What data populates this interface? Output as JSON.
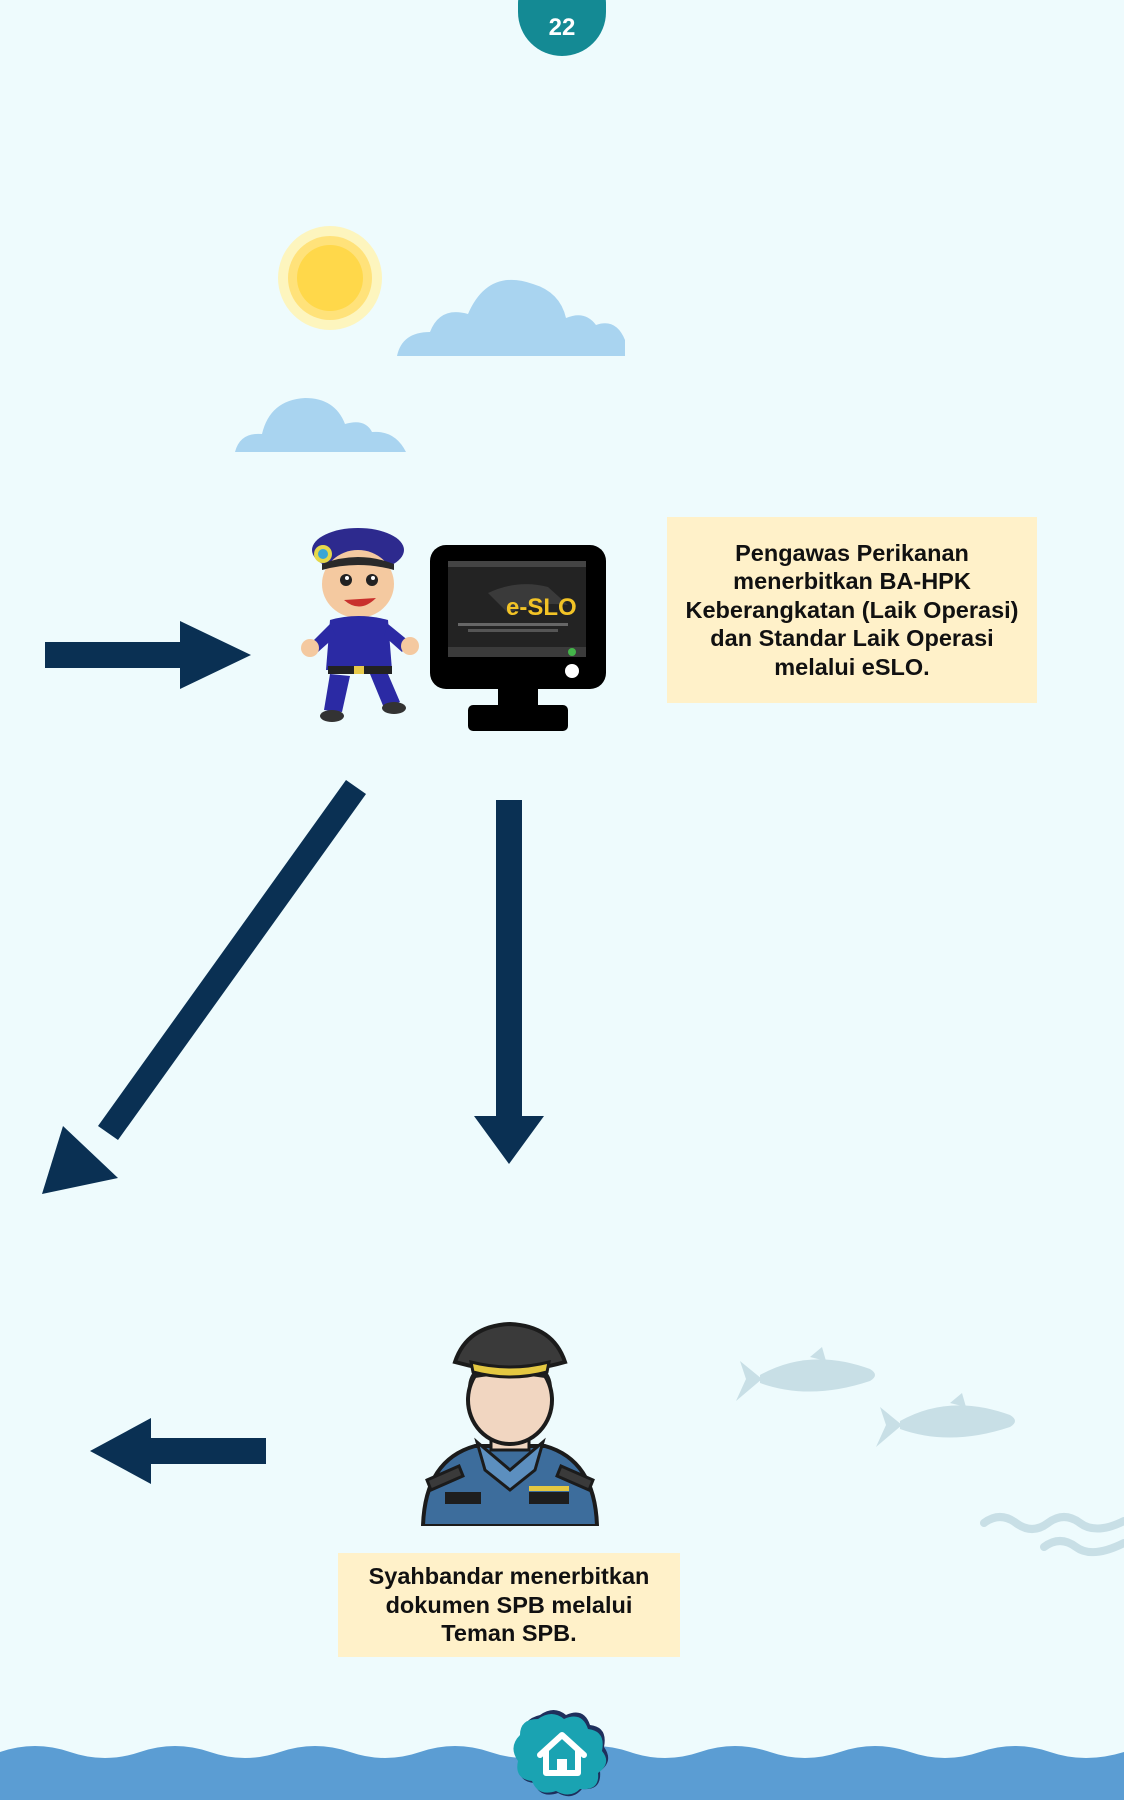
{
  "page": {
    "number": "22"
  },
  "notes": {
    "officer": "Pengawas Perikanan\nmenerbitkan BA-HPK\nKeberangkatan (Laik Operasi)\ndan Standar Laik Operasi\nmelalui eSLO.",
    "harbor_master": "Syahbandar menerbitkan\ndokumen SPB melalui\nTeman SPB."
  },
  "monitor": {
    "screen_logo": "e-SLO"
  },
  "icons": {
    "arrows": [
      "arrow-right-icon",
      "arrow-down-left-icon",
      "arrow-down-icon",
      "arrow-left-icon"
    ],
    "home": "home-icon"
  },
  "colors": {
    "background": "#eefbfd",
    "badge": "#148a94",
    "arrow": "#0a3053",
    "note_background": "#fff1c9",
    "sea": "#5b9dd3"
  }
}
